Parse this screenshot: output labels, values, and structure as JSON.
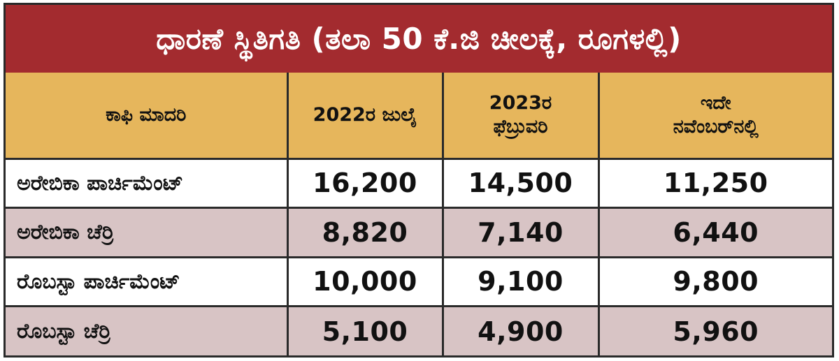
{
  "chart_data": {
    "type": "table",
    "title": "ಧಾರಣೆ ಸ್ಥಿತಿಗತಿ (ತಲಾ 50 ಕೆ.ಜಿ ಚೀಲಕ್ಕೆ, ರೂಗಳಲ್ಲಿ)",
    "columns": [
      "ಕಾಫಿ ಮಾದರಿ",
      "2022ರ ಜುಲೈ",
      "2023ರ ಫೆಬ್ರುವರಿ",
      "ಇದೇ ನವೆಂಬರ್‌ನಲ್ಲಿ"
    ],
    "header_lines": [
      [
        "ಕಾಫಿ ಮಾದರಿ"
      ],
      [
        "2022ರ ಜುಲೈ"
      ],
      [
        "2023ರ",
        "ಫೆಬ್ರುವರಿ"
      ],
      [
        "ಇದೇ",
        "ನವೆಂಬರ್‌ನಲ್ಲಿ"
      ]
    ],
    "rows": [
      {
        "label": "ಅರೇಬಿಕಾ ಪಾರ್ಚಿಮೆಂಟ್",
        "values": [
          "16,200",
          "14,500",
          "11,250"
        ]
      },
      {
        "label": "ಅರೇಬಿಕಾ ಚೆರ್ರಿ",
        "values": [
          "8,820",
          "7,140",
          "6,440"
        ]
      },
      {
        "label": "ರೊಬಸ್ಟಾ ಪಾರ್ಚಿಮೆಂಟ್",
        "values": [
          "10,000",
          "9,100",
          "9,800"
        ]
      },
      {
        "label": "ರೊಬಸ್ಟಾ ಚೆರ್ರಿ",
        "values": [
          "5,100",
          "4,900",
          "5,960"
        ]
      }
    ]
  },
  "colors": {
    "title_bg": "#a32b2f",
    "header_bg": "#e6b65c",
    "shaded_row_bg": "#d8c4c5",
    "plain_row_bg": "#ffffff",
    "border": "#2a2a2a"
  }
}
